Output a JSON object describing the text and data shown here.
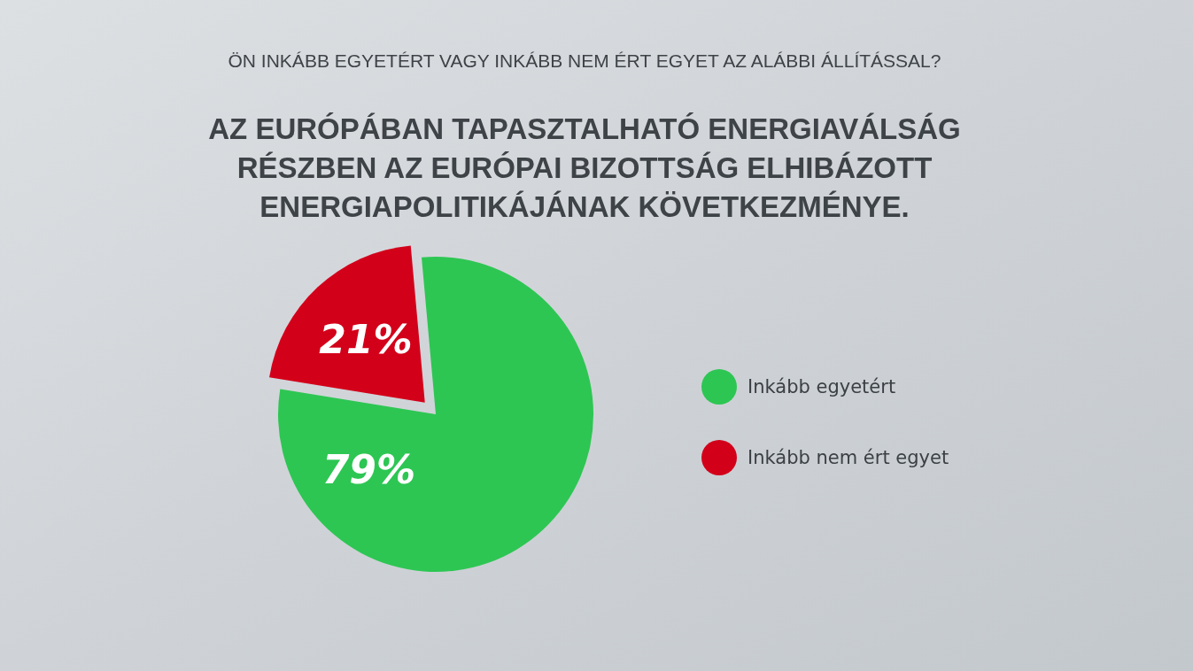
{
  "chart_data": {
    "type": "pie",
    "title": "ÖN INKÁBB EGYETÉRT VAGY INKÁBB NEM ÉRT EGYET AZ ALÁBBI ÁLLÍTÁSSAL?",
    "subtitle": "AZ EURÓPÁBAN TAPASZTALHATÓ ENERGIAVÁLSÁG\nRÉSZBEN AZ EURÓPAI BIZOTTSÁG ELHIBÁZOTT\nENERGIAPOLITIKÁJÁNAK KÖVETKEZMÉNYE.",
    "categories": [
      "Inkább egyetért",
      "Inkább nem ért egyet"
    ],
    "values": [
      79,
      21
    ],
    "colors": [
      "#2dc653",
      "#d3001a"
    ],
    "value_labels": [
      "79%",
      "21%"
    ],
    "legend": "right"
  }
}
